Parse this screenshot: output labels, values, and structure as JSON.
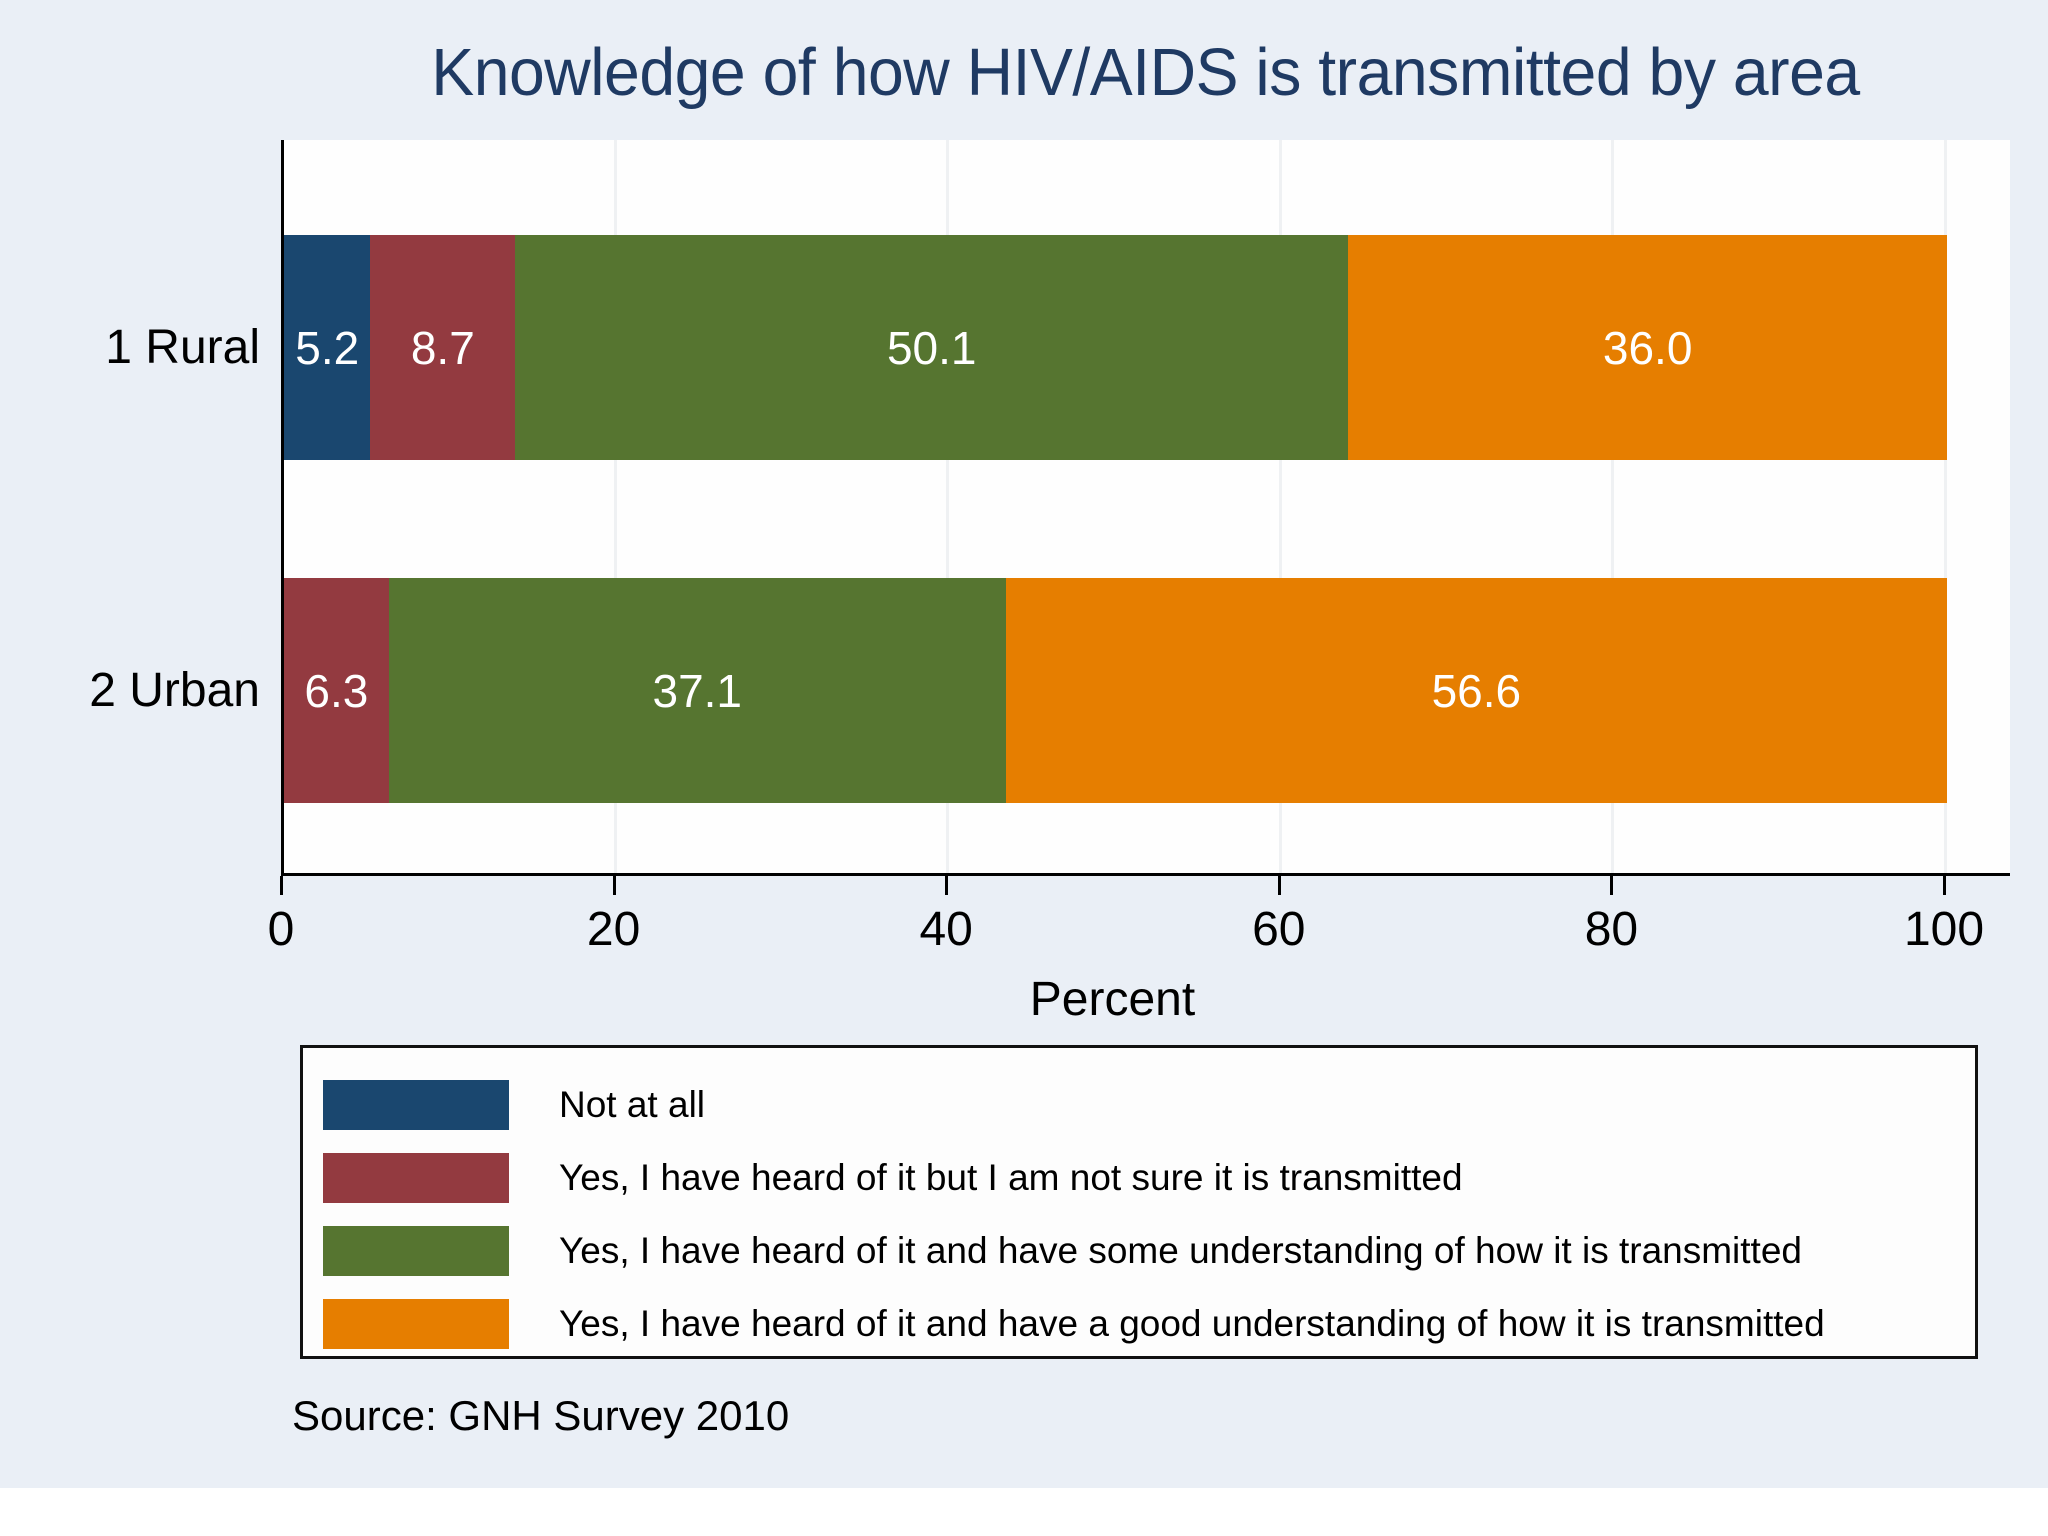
{
  "page": {
    "background": "#ffffff"
  },
  "chart": {
    "background": "#eaeff6",
    "plot_background": "#fefefe",
    "title_color": "#1f3a63",
    "gridline_color": "#eff1f3",
    "axis_color": "#000000",
    "value_label_color": "#ffffff",
    "text_color": "#000000",
    "legend_border_color": "#111111"
  },
  "source_note": "Source: GNH Survey 2010",
  "chart_data": {
    "type": "bar",
    "orientation": "horizontal",
    "stacked": true,
    "title": "Knowledge of how HIV/AIDS is transmitted by area",
    "categories": [
      "1 Rural",
      "2 Urban"
    ],
    "series": [
      {
        "name": "Not at all",
        "color": "#1a476f",
        "values": [
          5.2,
          0
        ]
      },
      {
        "name": "Yes, I have heard of it but I am not sure it is transmitted",
        "color": "#933a40",
        "values": [
          8.7,
          6.3
        ]
      },
      {
        "name": "Yes, I have heard of it and have some understanding of how it is transmitted",
        "color": "#567530",
        "values": [
          50.1,
          37.1
        ]
      },
      {
        "name": "Yes, I have heard of it and have a good understanding of how it is transmitted",
        "color": "#e67e00",
        "values": [
          36.0,
          56.6
        ]
      }
    ],
    "xlabel": "Percent",
    "xlim": [
      0,
      100
    ],
    "xticks": [
      0,
      20,
      40,
      60,
      80,
      100
    ],
    "grid": true,
    "legend_position": "bottom-left",
    "value_label_format": "one_decimal"
  }
}
